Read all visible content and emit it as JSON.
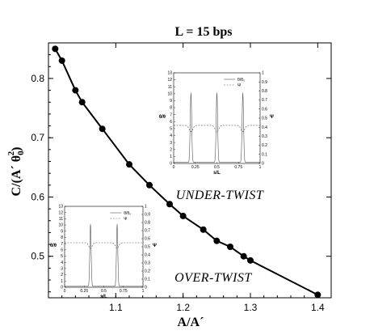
{
  "chart_data": {
    "type": "line",
    "title": "L = 15 bps",
    "xlabel": "A/A´",
    "ylabel": "C/(A´ θ",
    "ylabel_sub": "0",
    "ylabel_sup": "2",
    "ylabel_close": ")",
    "xlim": [
      1.0,
      1.42
    ],
    "ylim": [
      0.43,
      0.86
    ],
    "xticks": [
      1.1,
      1.2,
      1.3,
      1.4
    ],
    "yticks": [
      0.5,
      0.6,
      0.7,
      0.8
    ],
    "xtick_labels": [
      "1.1",
      "1.2",
      "1.3",
      "1.4"
    ],
    "ytick_labels": [
      "0.5",
      "0.6",
      "0.7",
      "0.8"
    ],
    "series": [
      {
        "x": [
          1.01,
          1.02,
          1.04,
          1.05,
          1.08,
          1.12,
          1.15,
          1.18,
          1.2,
          1.23,
          1.25,
          1.27,
          1.29,
          1.3,
          1.4
        ],
        "y": [
          0.85,
          0.83,
          0.78,
          0.76,
          0.715,
          0.655,
          0.62,
          0.588,
          0.568,
          0.545,
          0.526,
          0.516,
          0.5,
          0.493,
          0.435
        ]
      }
    ],
    "annotations": [
      "UNDER-TWIST",
      "OVER-TWIST"
    ],
    "insets": [
      {
        "name": "inset-under-twist",
        "xlabel": "s/L",
        "ylabel_left": "θ/θ",
        "ylabel_right": "Ψ",
        "legend": [
          "θ/θ₀",
          "Ψ"
        ],
        "yticks_left": [
          "0",
          "1",
          "2",
          "3",
          "4",
          "5",
          "6",
          "7",
          "8",
          "9",
          "10",
          "11",
          "12",
          "13"
        ],
        "yticks_right": [
          "0",
          "0.1",
          "0.2",
          "0.3",
          "0.4",
          "0.5",
          "0.6",
          "0.7",
          "0.8",
          "0.9",
          "1"
        ],
        "xticks": [
          "0",
          "0.25",
          "0.5",
          "0.75",
          "1"
        ],
        "peaks": [
          0.2,
          0.5,
          0.8
        ],
        "peak_height": 10,
        "psi_level": 0.42
      },
      {
        "name": "inset-over-twist",
        "xlabel": "s/L",
        "ylabel_left": "θ/θ",
        "ylabel_right": "Ψ",
        "legend": [
          "θ/θ₀",
          "Ψ"
        ],
        "yticks_left": [
          "0",
          "1",
          "2",
          "3",
          "4",
          "5",
          "6",
          "7",
          "8",
          "9",
          "10",
          "11",
          "12",
          "13"
        ],
        "yticks_right": [
          "0",
          "0.1",
          "0.2",
          "0.3",
          "0.4",
          "0.5",
          "0.6",
          "0.7",
          "0.8",
          "0.9",
          "1"
        ],
        "xticks": [
          "0",
          "0.25",
          "0.5",
          "0.75",
          "1"
        ],
        "peaks": [
          0.33,
          0.67
        ],
        "peak_height": 10,
        "psi_level": 0.55
      }
    ]
  }
}
